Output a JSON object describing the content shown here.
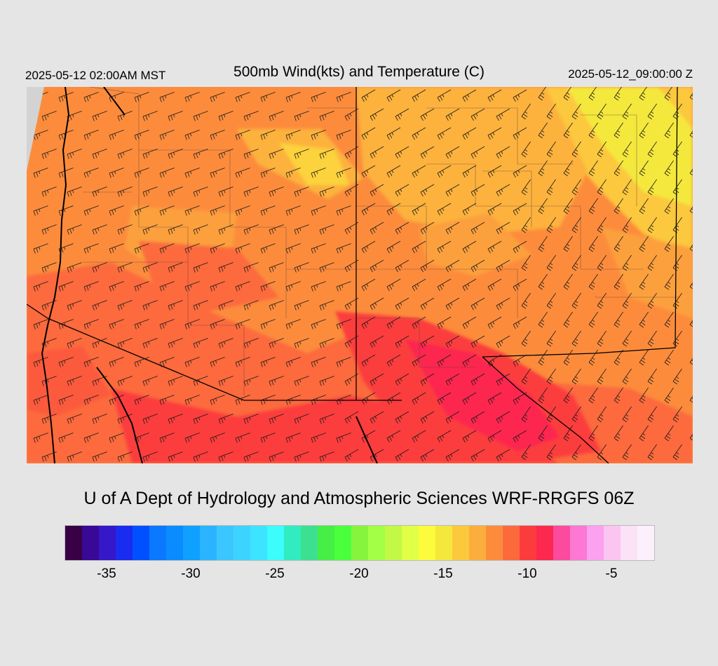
{
  "header": {
    "left": "2025-05-12 02:00AM MST",
    "title": "500mb Wind(kts) and Temperature (C)",
    "right": "2025-05-12_09:00:00 Z"
  },
  "credit": "U of A Dept of Hydrology and Atmospheric Sciences WRF-RRGFS 06Z",
  "colorbar": {
    "colors": [
      "#3a0046",
      "#3a0896",
      "#3518c8",
      "#1a2cf0",
      "#0050ff",
      "#0a78ff",
      "#0a8cff",
      "#10a0ff",
      "#2ab4ff",
      "#3cc6ff",
      "#3cd4ff",
      "#3ce4ff",
      "#3cfcfc",
      "#30ecc0",
      "#3ce090",
      "#46ee46",
      "#4aff3c",
      "#86f43c",
      "#a2ff46",
      "#c2f846",
      "#e0ff46",
      "#fcfc3c",
      "#f4e83c",
      "#fcc83c",
      "#fcae3c",
      "#fc8c3c",
      "#fc6a3c",
      "#fc3c3c",
      "#fc2850",
      "#fc4a9e",
      "#fc78d2",
      "#fca0f0",
      "#fcc4f0",
      "#fce2f6",
      "#fcf0fc"
    ],
    "ticks": [
      {
        "label": "-35",
        "value": -35
      },
      {
        "label": "-30",
        "value": -30
      },
      {
        "label": "-25",
        "value": -25
      },
      {
        "label": "-20",
        "value": -20
      },
      {
        "label": "-15",
        "value": -15
      },
      {
        "label": "-10",
        "value": -10
      },
      {
        "label": "-5",
        "value": -5
      }
    ],
    "min": -37.5,
    "max": -2.5
  },
  "map": {
    "field": "500mb temperature (C) with wind barbs (kts)",
    "temperature_range_shown": [
      -17,
      -6
    ]
  }
}
